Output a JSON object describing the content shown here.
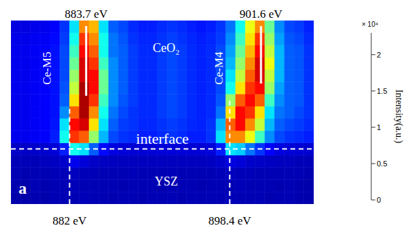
{
  "chart_data": {
    "type": "heatmap",
    "tick_labels": false,
    "xlim": [
      876,
      907
    ],
    "ylim": [
      0,
      30
    ],
    "x_bins": [
      876,
      877,
      878,
      879,
      880,
      881,
      882,
      883,
      884,
      885,
      886,
      887,
      888,
      889,
      890,
      891,
      892,
      893,
      894,
      895,
      896,
      897,
      898,
      899,
      900,
      901,
      902,
      903,
      904,
      905,
      906,
      907
    ],
    "y_bins": [
      0,
      2,
      4,
      6,
      8,
      10,
      12,
      14,
      16,
      18,
      20,
      22,
      24,
      26,
      28,
      30
    ],
    "cells": [
      [
        0.1,
        0.1,
        0.11,
        0.1,
        0.12,
        0.12,
        0.12,
        0.13,
        0.12,
        0.12,
        0.11,
        0.12,
        0.12,
        0.11,
        0.12,
        0.12,
        0.12,
        0.11,
        0.12,
        0.12,
        0.12,
        0.12,
        0.13,
        0.12,
        0.12,
        0.12,
        0.11,
        0.12,
        0.12,
        0.11,
        0.1
      ],
      [
        0.11,
        0.1,
        0.12,
        0.11,
        0.12,
        0.12,
        0.13,
        0.12,
        0.12,
        0.12,
        0.12,
        0.11,
        0.12,
        0.12,
        0.12,
        0.11,
        0.12,
        0.12,
        0.12,
        0.11,
        0.12,
        0.12,
        0.12,
        0.13,
        0.12,
        0.12,
        0.12,
        0.11,
        0.12,
        0.11,
        0.1
      ],
      [
        0.12,
        0.11,
        0.12,
        0.12,
        0.13,
        0.13,
        0.14,
        0.13,
        0.13,
        0.12,
        0.12,
        0.12,
        0.13,
        0.12,
        0.12,
        0.12,
        0.13,
        0.12,
        0.12,
        0.12,
        0.12,
        0.13,
        0.14,
        0.13,
        0.13,
        0.12,
        0.12,
        0.12,
        0.12,
        0.12,
        0.11
      ],
      [
        0.13,
        0.13,
        0.13,
        0.14,
        0.15,
        0.17,
        0.25,
        0.2,
        0.16,
        0.15,
        0.14,
        0.14,
        0.14,
        0.14,
        0.14,
        0.14,
        0.14,
        0.14,
        0.14,
        0.14,
        0.15,
        0.17,
        0.22,
        0.2,
        0.17,
        0.16,
        0.15,
        0.14,
        0.14,
        0.13,
        0.13
      ],
      [
        0.16,
        0.16,
        0.17,
        0.18,
        0.2,
        0.35,
        0.9,
        0.8,
        0.5,
        0.3,
        0.22,
        0.2,
        0.19,
        0.19,
        0.19,
        0.2,
        0.2,
        0.2,
        0.19,
        0.19,
        0.2,
        0.35,
        0.8,
        0.75,
        0.55,
        0.4,
        0.28,
        0.22,
        0.2,
        0.19,
        0.18
      ],
      [
        0.25,
        0.25,
        0.27,
        0.28,
        0.35,
        0.9,
        1.9,
        1.8,
        1.2,
        0.7,
        0.45,
        0.4,
        0.38,
        0.35,
        0.35,
        0.38,
        0.4,
        0.38,
        0.35,
        0.35,
        0.4,
        0.8,
        1.7,
        1.7,
        1.4,
        1.0,
        0.6,
        0.45,
        0.4,
        0.38,
        0.35
      ],
      [
        0.25,
        0.25,
        0.27,
        0.28,
        0.33,
        0.8,
        2.0,
        2.1,
        1.5,
        0.8,
        0.5,
        0.42,
        0.4,
        0.37,
        0.37,
        0.4,
        0.42,
        0.4,
        0.37,
        0.36,
        0.4,
        0.7,
        1.8,
        2.0,
        1.7,
        1.3,
        0.7,
        0.5,
        0.45,
        0.42,
        0.38
      ],
      [
        0.25,
        0.25,
        0.27,
        0.28,
        0.32,
        0.6,
        1.8,
        2.2,
        1.7,
        0.9,
        0.55,
        0.45,
        0.4,
        0.38,
        0.38,
        0.42,
        0.45,
        0.42,
        0.38,
        0.36,
        0.38,
        0.55,
        1.5,
        2.0,
        1.9,
        1.5,
        0.8,
        0.55,
        0.5,
        0.45,
        0.4
      ],
      [
        0.25,
        0.25,
        0.27,
        0.28,
        0.32,
        0.5,
        1.5,
        2.2,
        1.9,
        1.0,
        0.6,
        0.48,
        0.42,
        0.38,
        0.38,
        0.42,
        0.45,
        0.42,
        0.38,
        0.36,
        0.38,
        0.48,
        1.2,
        1.8,
        2.0,
        1.8,
        1.0,
        0.6,
        0.5,
        0.48,
        0.4
      ],
      [
        0.25,
        0.25,
        0.27,
        0.28,
        0.32,
        0.47,
        1.3,
        2.2,
        2.0,
        1.1,
        0.6,
        0.5,
        0.42,
        0.38,
        0.38,
        0.42,
        0.45,
        0.42,
        0.38,
        0.36,
        0.38,
        0.45,
        0.9,
        1.5,
        1.9,
        2.0,
        1.2,
        0.65,
        0.5,
        0.48,
        0.4
      ],
      [
        0.25,
        0.25,
        0.27,
        0.28,
        0.32,
        0.45,
        1.2,
        2.1,
        2.0,
        1.1,
        0.6,
        0.5,
        0.42,
        0.38,
        0.38,
        0.42,
        0.45,
        0.42,
        0.38,
        0.36,
        0.38,
        0.45,
        0.8,
        1.3,
        1.8,
        2.1,
        1.3,
        0.7,
        0.5,
        0.48,
        0.4
      ],
      [
        0.25,
        0.25,
        0.27,
        0.28,
        0.32,
        0.45,
        1.1,
        2.1,
        1.9,
        1.0,
        0.6,
        0.5,
        0.42,
        0.38,
        0.38,
        0.42,
        0.45,
        0.42,
        0.38,
        0.36,
        0.38,
        0.45,
        0.7,
        1.2,
        1.7,
        2.1,
        1.4,
        0.7,
        0.5,
        0.48,
        0.4
      ],
      [
        0.25,
        0.25,
        0.27,
        0.28,
        0.32,
        0.45,
        1.0,
        2.0,
        1.8,
        0.9,
        0.55,
        0.5,
        0.42,
        0.38,
        0.38,
        0.42,
        0.45,
        0.42,
        0.38,
        0.36,
        0.38,
        0.45,
        0.65,
        1.1,
        1.6,
        2.0,
        1.3,
        0.7,
        0.5,
        0.48,
        0.4
      ],
      [
        0.24,
        0.24,
        0.26,
        0.27,
        0.3,
        0.42,
        0.9,
        1.9,
        1.7,
        0.9,
        0.55,
        0.48,
        0.4,
        0.37,
        0.37,
        0.4,
        0.43,
        0.4,
        0.37,
        0.35,
        0.37,
        0.42,
        0.6,
        1.0,
        1.5,
        1.9,
        1.2,
        0.65,
        0.48,
        0.45,
        0.38
      ],
      [
        0.22,
        0.22,
        0.24,
        0.25,
        0.28,
        0.4,
        0.8,
        1.7,
        1.6,
        0.8,
        0.5,
        0.45,
        0.38,
        0.35,
        0.35,
        0.38,
        0.4,
        0.38,
        0.35,
        0.33,
        0.35,
        0.4,
        0.55,
        0.9,
        1.4,
        1.7,
        1.1,
        0.6,
        0.45,
        0.42,
        0.36
      ]
    ],
    "colorbar": {
      "label": "Intensity(a.u.)",
      "multiplier": "× 10⁴",
      "range": [
        0,
        2.3
      ],
      "ticks": [
        0,
        0.5,
        1,
        1.5,
        2
      ]
    },
    "interface": {
      "y": 9,
      "label": "interface",
      "line_style": "dashed"
    },
    "onsets": [
      {
        "x": 882,
        "label": "882 eV",
        "y": [
          0,
          15.8
        ],
        "line_style": "dashed"
      },
      {
        "x": 898.4,
        "label": "898.4 eV",
        "y": [
          0,
          16.9
        ],
        "line_style": "dashed"
      }
    ],
    "peaks": [
      {
        "x": 883.7,
        "label": "883.7 eV",
        "y": [
          17.7,
          29.1
        ],
        "line_style": "solid"
      },
      {
        "x": 901.6,
        "label": "901.6 eV",
        "y": [
          19.7,
          29.1
        ],
        "line_style": "solid"
      }
    ],
    "edge_labels": [
      {
        "text": "Ce-M5",
        "x": 879.7,
        "y": 22.2
      },
      {
        "text": "Ce-M4",
        "x": 897.3,
        "y": 22.2
      }
    ],
    "region_labels": [
      {
        "text": "CeO₂",
        "x": 891.9,
        "y": 25.5
      },
      {
        "text": "YSZ",
        "x": 891.9,
        "y": 3.7
      }
    ],
    "panel_label": {
      "text": "a",
      "x": 877.2,
      "y": 2.6
    }
  }
}
